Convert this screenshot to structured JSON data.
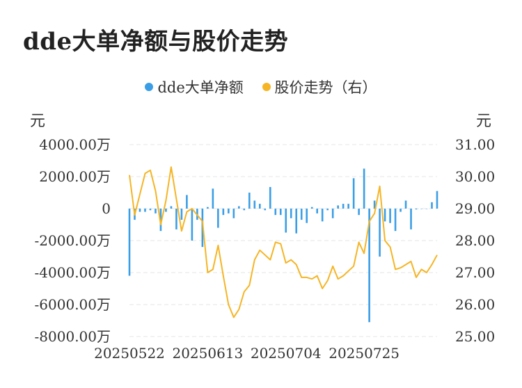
{
  "title": "dde大单净额与股价走势",
  "legend": {
    "bar_label": "dde大单净额",
    "line_label": "股价走势（右）"
  },
  "axis_units": {
    "left": "元",
    "right": "元"
  },
  "colors": {
    "bar": "#3a9ee6",
    "line": "#f5b524",
    "grid": "#e6e6e6"
  },
  "chart_data": {
    "type": "bar+line",
    "left_axis": {
      "range": [
        -8000,
        4000
      ],
      "unit": "万",
      "ticks": [
        "4000.00万",
        "2000.00万",
        "0",
        "-2000.00万",
        "-4000.00万",
        "-6000.00万",
        "-8000.00万"
      ]
    },
    "right_axis": {
      "range": [
        25,
        31
      ],
      "ticks": [
        "31.00",
        "30.00",
        "29.00",
        "28.00",
        "27.00",
        "26.00",
        "25.00"
      ]
    },
    "x_ticks": [
      {
        "label": "20250522",
        "index": 0
      },
      {
        "label": "20250613",
        "index": 15
      },
      {
        "label": "20250704",
        "index": 30
      },
      {
        "label": "20250725",
        "index": 45
      }
    ],
    "bar_series": {
      "name": "dde大单净额",
      "values": [
        -4200,
        -700,
        -200,
        -200,
        -100,
        -300,
        -1400,
        -200,
        150,
        -1300,
        -700,
        850,
        -2000,
        -700,
        -2400,
        100,
        1250,
        -1200,
        -400,
        -300,
        -600,
        150,
        -100,
        1000,
        500,
        300,
        -100,
        1350,
        -400,
        -400,
        -1500,
        -600,
        -1550,
        -700,
        -900,
        100,
        -300,
        -800,
        -100,
        -600,
        200,
        300,
        300,
        1900,
        -400,
        2500,
        -7100,
        500,
        -3000,
        -800,
        -900,
        -1400,
        -200,
        500,
        -1300,
        -50,
        0,
        0,
        400,
        1100
      ]
    },
    "line_series": {
      "name": "股价走势（右）",
      "values": [
        30.05,
        28.8,
        29.45,
        30.1,
        30.2,
        29.55,
        28.5,
        29.25,
        30.3,
        29.3,
        28.3,
        28.9,
        29.0,
        28.8,
        28.6,
        27.0,
        27.1,
        27.85,
        26.9,
        26.0,
        25.6,
        25.85,
        26.4,
        26.6,
        27.4,
        27.7,
        27.55,
        27.4,
        27.95,
        27.9,
        27.3,
        27.4,
        27.25,
        26.85,
        26.85,
        26.8,
        26.9,
        26.5,
        26.75,
        27.2,
        26.8,
        26.9,
        27.05,
        27.2,
        27.95,
        27.6,
        28.6,
        28.85,
        29.7,
        28.0,
        27.8,
        27.1,
        27.15,
        27.25,
        27.35,
        26.85,
        27.1,
        27.0,
        27.25,
        27.55
      ]
    }
  }
}
